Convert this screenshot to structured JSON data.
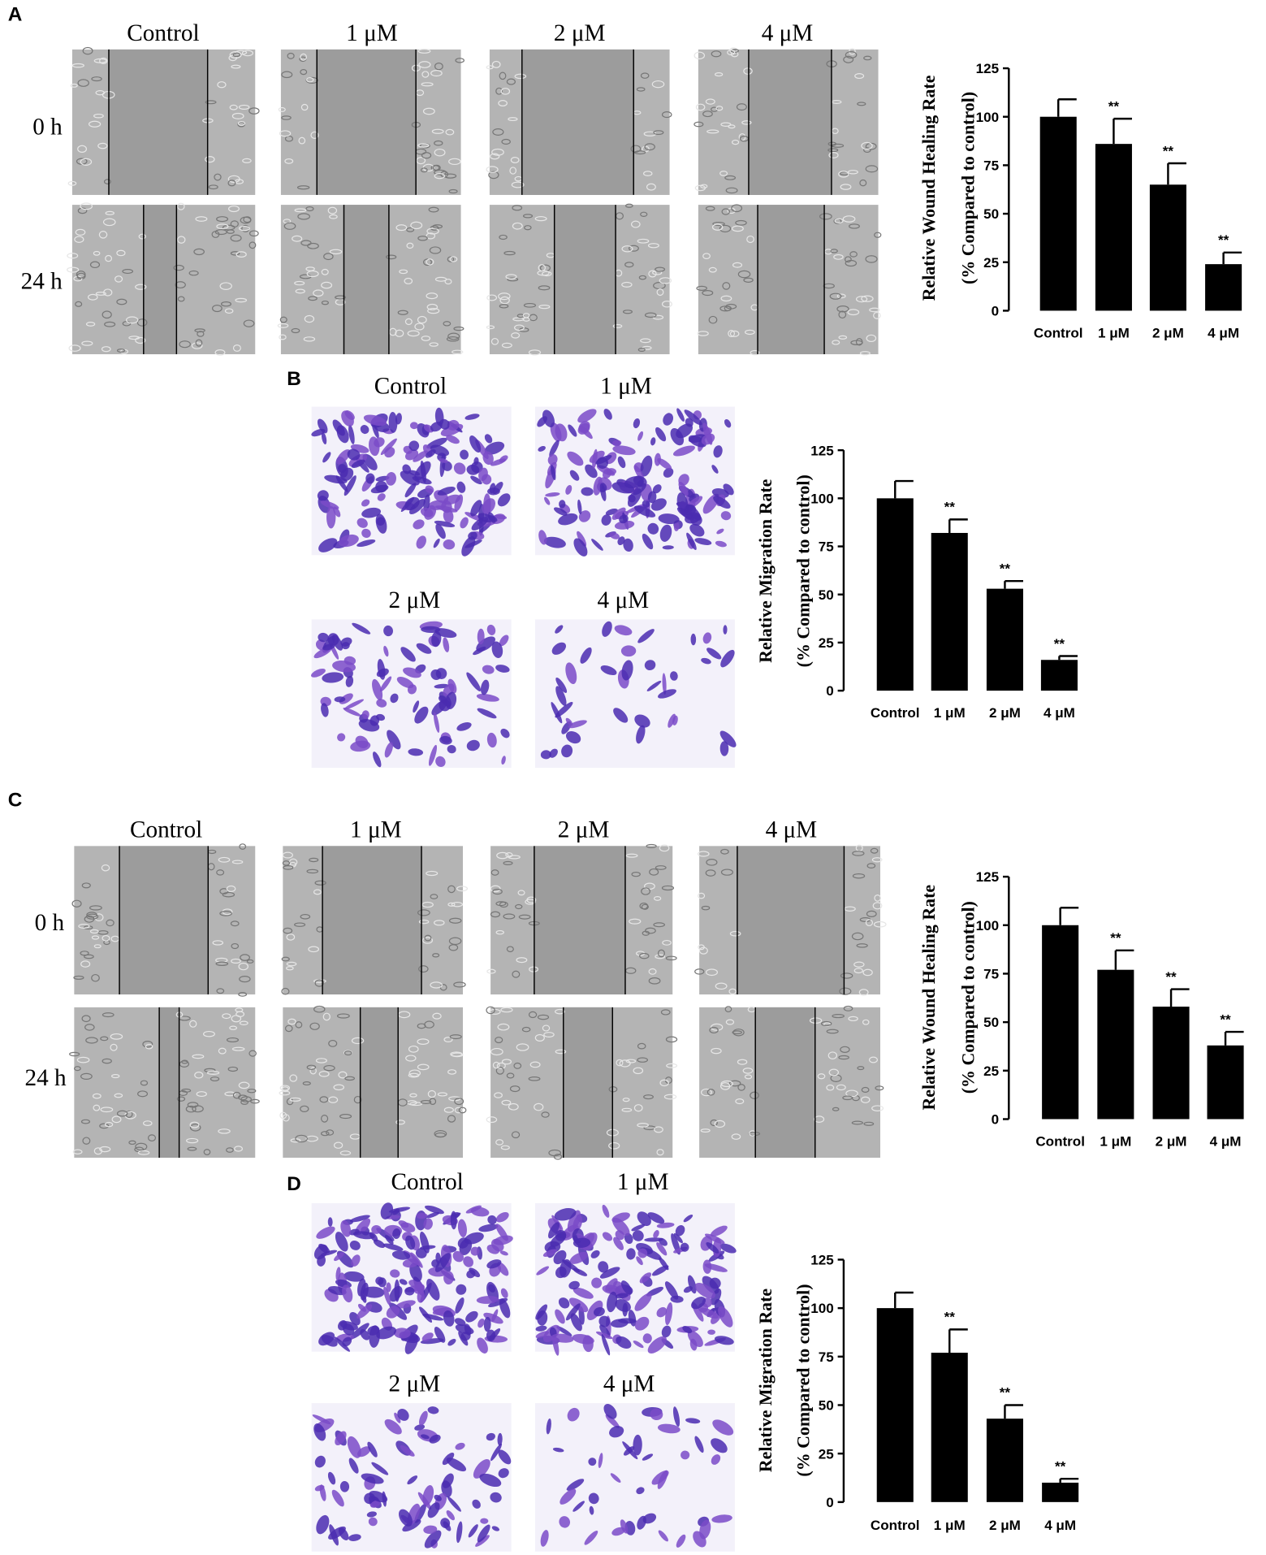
{
  "panels": [
    {
      "label": "A",
      "columns": [
        "Control",
        "1 μM",
        "2 μM",
        "4 μM"
      ],
      "rows": [
        "0 h",
        "24 h"
      ]
    },
    {
      "label": "B",
      "images": [
        "Control",
        "1 μM",
        "2 μM",
        "4 μM"
      ]
    },
    {
      "label": "C",
      "columns": [
        "Control",
        "1 μM",
        "2 μM",
        "4 μM"
      ],
      "rows": [
        "0 h",
        "24 h"
      ]
    },
    {
      "label": "D",
      "images": [
        "Control",
        "1 μM",
        "2 μM",
        "4 μM"
      ]
    }
  ],
  "chart_data": [
    {
      "type": "bar",
      "ylabel": [
        "Relative Wound Healing Rate",
        "(% Compared to control)"
      ],
      "categories": [
        "Control",
        "1 μM",
        "2 μM",
        "4 μM"
      ],
      "values": [
        100,
        86,
        65,
        24
      ],
      "errors": [
        9,
        13,
        11,
        6
      ],
      "annotations": [
        null,
        "**",
        "**",
        "**"
      ],
      "color": "#000000",
      "ylim": [
        0,
        125
      ],
      "yticks": [
        0,
        25,
        50,
        75,
        100,
        125
      ]
    },
    {
      "type": "bar",
      "ylabel": [
        "Relative Migration Rate",
        "(% Compared to control)"
      ],
      "categories": [
        "Control",
        "1 μM",
        "2 μM",
        "4 μM"
      ],
      "values": [
        100,
        82,
        53,
        16
      ],
      "errors": [
        9,
        7,
        4,
        2
      ],
      "annotations": [
        null,
        "**",
        "**",
        "**"
      ],
      "color": "#000000",
      "ylim": [
        0,
        125
      ],
      "yticks": [
        0,
        25,
        50,
        75,
        100,
        125
      ]
    },
    {
      "type": "bar",
      "ylabel": [
        "Relative Wound Healing Rate",
        "(% Compared to control)"
      ],
      "categories": [
        "Control",
        "1 μM",
        "2 μM",
        "4 μM"
      ],
      "values": [
        100,
        77,
        58,
        38
      ],
      "errors": [
        9,
        10,
        9,
        7
      ],
      "annotations": [
        null,
        "**",
        "**",
        "**"
      ],
      "color": "#000000",
      "ylim": [
        0,
        125
      ],
      "yticks": [
        0,
        25,
        50,
        75,
        100,
        125
      ]
    },
    {
      "type": "bar",
      "ylabel": [
        "Relative Migration Rate",
        "(% Compared to control)"
      ],
      "categories": [
        "Control",
        "1 μM",
        "2 μM",
        "4 μM"
      ],
      "values": [
        100,
        77,
        43,
        10
      ],
      "errors": [
        8,
        12,
        7,
        2
      ],
      "annotations": [
        null,
        "**",
        "**",
        "**"
      ],
      "color": "#000000",
      "ylim": [
        0,
        125
      ],
      "yticks": [
        0,
        25,
        50,
        75,
        100,
        125
      ]
    }
  ]
}
